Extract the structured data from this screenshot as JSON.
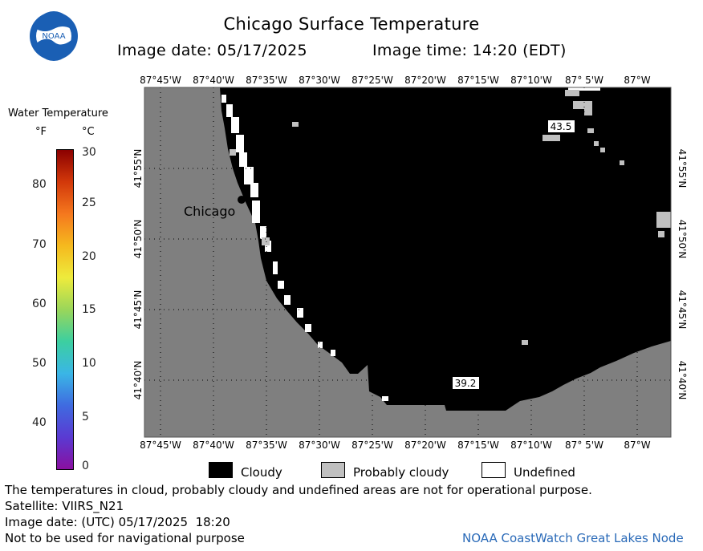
{
  "header": {
    "title": "Chicago Surface Temperature",
    "image_date": "Image date: 05/17/2025",
    "image_time": "Image time: 14:20 (EDT)"
  },
  "logo": {
    "icon": "noaa-logo-icon",
    "text": "NOAA"
  },
  "scale": {
    "title": "Water Temperature",
    "f_label": "°F",
    "c_label": "°C",
    "f_ticks": [
      "80",
      "70",
      "60",
      "50",
      "40"
    ],
    "c_ticks": [
      "30",
      "25",
      "20",
      "15",
      "10",
      "5",
      "0"
    ],
    "colors": [
      "#8b0000",
      "#d2380a",
      "#f5781e",
      "#f5b91e",
      "#eeeb3c",
      "#9ad65a",
      "#3ccfa0",
      "#3ab6e6",
      "#3f6be0",
      "#5a3ad2",
      "#8a0fa0"
    ]
  },
  "map": {
    "top_lon_labels": [
      "87°45'W",
      "87°40'W",
      "87°35'W",
      "87°30'W",
      "87°25'W",
      "87°20'W",
      "87°15'W",
      "87°10'W",
      "87° 5'W",
      "87°W"
    ],
    "bottom_lon_labels": [
      "87°45'W",
      "87°40'W",
      "87°35'W",
      "87°30'W",
      "87°25'W",
      "87°20'W",
      "87°15'W",
      "87°10'W",
      "87° 5'W",
      "87°W"
    ],
    "lat_labels": [
      "41°55'N",
      "41°50'N",
      "41°45'N",
      "41°40'N"
    ],
    "city": "Chicago",
    "temp_labels": [
      "43.5",
      "39.2"
    ],
    "colors": {
      "land": "#7f7f7f",
      "cloudy": "#000000",
      "probably_cloudy": "#c0c0c0",
      "undefined": "#ffffff"
    }
  },
  "legend": {
    "cloudy": "Cloudy",
    "probably_cloudy": "Probably cloudy",
    "undefined": "Undefined"
  },
  "footer": {
    "disclaimer": "The temperatures in cloud, probably cloudy and undefined areas are not for operational purpose.",
    "satellite": "Satellite: VIIRS_N21",
    "utc_date": "Image date: (UTC) 05/17/2025  18:20",
    "nav_note": "Not to be used for navigational purpose",
    "credit": "NOAA CoastWatch Great Lakes Node"
  }
}
